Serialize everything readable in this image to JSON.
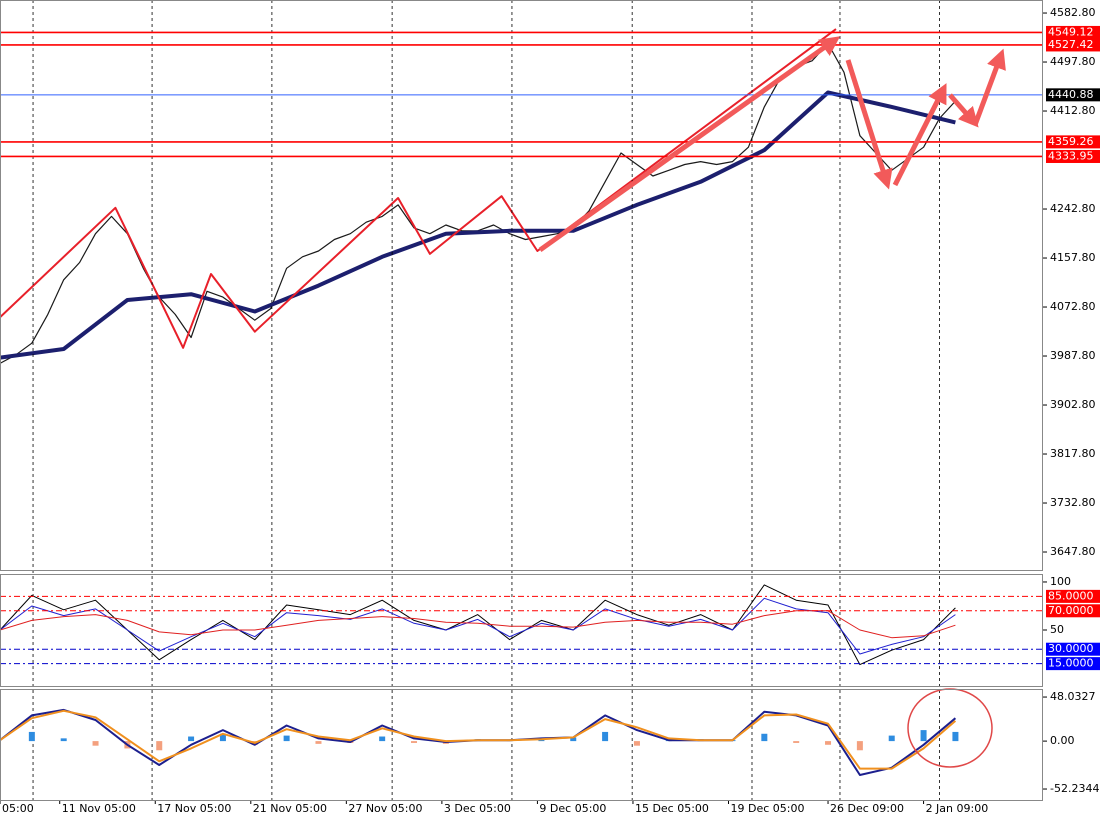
{
  "chart_data": [
    {
      "type": "line",
      "xlim": [
        0,
        262
      ],
      "ylim": [
        3616.6,
        4605.4
      ],
      "yticks": [
        {
          "value": 4582.8,
          "label": "4582.80"
        },
        {
          "value": 4497.8,
          "label": "4497.80"
        },
        {
          "value": 4412.8,
          "label": "4412.80"
        },
        {
          "value": 4242.8,
          "label": "4242.80"
        },
        {
          "value": 4157.8,
          "label": "4157.80"
        },
        {
          "value": 4072.8,
          "label": "4072.80"
        },
        {
          "value": 3987.8,
          "label": "3987.80"
        },
        {
          "value": 3902.8,
          "label": "3902.80"
        },
        {
          "value": 3817.8,
          "label": "3817.80"
        },
        {
          "value": 3732.8,
          "label": "3732.80"
        },
        {
          "value": 3647.8,
          "label": "3647.80"
        }
      ],
      "separators": [
        8.3,
        38.2,
        68.3,
        98.5,
        128.6,
        158.8,
        188.9,
        211,
        236
      ],
      "levels": [
        {
          "value": 4549.12,
          "color": "#ff0000",
          "label_color": "#ff0000"
        },
        {
          "value": 4527.42,
          "color": "#ff0000",
          "label_color": "#ff0000"
        },
        {
          "value": 4440.88,
          "color": "#3060ff",
          "label_color": "#000000"
        },
        {
          "value": 4359.26,
          "color": "#ff0000",
          "label_color": "#ff0000"
        },
        {
          "value": 4333.95,
          "color": "#ff0000",
          "label_color": "#ff0000"
        }
      ],
      "series": [
        {
          "color": "#1a1a1a",
          "width": 1.2,
          "x": [
            0,
            4,
            8,
            12,
            16,
            20,
            24,
            28,
            32,
            36,
            40,
            44,
            48,
            52,
            56,
            60,
            64,
            68,
            72,
            76,
            80,
            84,
            88,
            92,
            96,
            100,
            104,
            108,
            112,
            116,
            120,
            124,
            128,
            132,
            136,
            140,
            144,
            148,
            152,
            156,
            160,
            164,
            168,
            172,
            176,
            180,
            184,
            188,
            192,
            196,
            200,
            204,
            208,
            212,
            216,
            220,
            224,
            228,
            232,
            236,
            240
          ],
          "values": [
            3975,
            3990,
            4010,
            4060,
            4120,
            4150,
            4200,
            4230,
            4200,
            4140,
            4090,
            4060,
            4020,
            4100,
            4090,
            4070,
            4050,
            4070,
            4140,
            4160,
            4170,
            4190,
            4200,
            4220,
            4230,
            4250,
            4210,
            4200,
            4215,
            4205,
            4205,
            4215,
            4200,
            4190,
            4195,
            4200,
            4210,
            4240,
            4290,
            4340,
            4320,
            4300,
            4310,
            4320,
            4325,
            4320,
            4325,
            4350,
            4420,
            4470,
            4490,
            4500,
            4530,
            4480,
            4370,
            4340,
            4310,
            4330,
            4350,
            4400,
            4430
          ]
        },
        {
          "color": "#1c1f6e",
          "width": 4,
          "x": [
            0,
            16,
            32,
            48,
            64,
            80,
            96,
            112,
            128,
            144,
            160,
            176,
            192,
            208,
            224,
            240
          ],
          "values": [
            3985,
            4000,
            4085,
            4095,
            4065,
            4110,
            4160,
            4200,
            4205,
            4205,
            4250,
            4290,
            4345,
            4445,
            4420,
            4393
          ]
        },
        {
          "color": "#e8202a",
          "width": 2,
          "x": [
            0,
            29,
            46,
            53,
            64,
            100,
            108,
            126,
            135,
            210
          ],
          "values": [
            4055,
            4245,
            4002,
            4130,
            4030,
            4262,
            4165,
            4265,
            4170,
            4555
          ]
        }
      ]
    },
    {
      "type": "line",
      "xlim": [
        0,
        262
      ],
      "ylim": [
        -8.3,
        108.3
      ],
      "yticks": [
        100,
        50
      ],
      "levels": [
        {
          "value": 85,
          "label": "85.0000",
          "color": "#ff0000",
          "label_color": "#ff0000"
        },
        {
          "value": 70,
          "label": "70.0000",
          "color": "#ff0000",
          "label_color": "#ff0000"
        },
        {
          "value": 30,
          "label": "30.0000",
          "color": "#0000cc",
          "label_color": "#0000ff"
        },
        {
          "value": 15,
          "label": "15.0000",
          "color": "#0000cc",
          "label_color": "#0000ff"
        }
      ],
      "series": [
        {
          "color": "#000000",
          "width": 1,
          "x": [
            0,
            8,
            16,
            24,
            32,
            40,
            48,
            56,
            64,
            72,
            80,
            88,
            96,
            104,
            112,
            120,
            128,
            136,
            144,
            152,
            160,
            168,
            176,
            184,
            192,
            200,
            208,
            216,
            224,
            232,
            240
          ],
          "values": [
            50,
            86,
            71,
            81,
            50,
            19,
            40,
            60,
            40,
            76,
            71,
            66,
            81,
            60,
            50,
            66,
            40,
            60,
            50,
            81,
            66,
            55,
            66,
            50,
            97,
            81,
            76,
            14,
            29,
            40,
            73
          ]
        },
        {
          "color": "#2020d0",
          "width": 1,
          "x": [
            0,
            8,
            16,
            24,
            32,
            40,
            48,
            56,
            64,
            72,
            80,
            88,
            96,
            104,
            112,
            120,
            128,
            136,
            144,
            152,
            160,
            168,
            176,
            184,
            192,
            200,
            208,
            216,
            224,
            232,
            240
          ],
          "values": [
            50,
            75,
            65,
            72,
            50,
            28,
            43,
            57,
            43,
            68,
            65,
            61,
            72,
            57,
            50,
            61,
            43,
            57,
            50,
            72,
            61,
            54,
            61,
            50,
            83,
            72,
            68,
            25,
            35,
            43,
            66
          ]
        },
        {
          "color": "#e02020",
          "width": 1,
          "x": [
            0,
            8,
            16,
            24,
            32,
            40,
            48,
            56,
            64,
            72,
            80,
            88,
            96,
            104,
            112,
            120,
            128,
            136,
            144,
            152,
            160,
            168,
            176,
            184,
            192,
            200,
            208,
            216,
            224,
            232,
            240
          ],
          "values": [
            50,
            60,
            64,
            66,
            60,
            48,
            45,
            50,
            50,
            55,
            60,
            62,
            64,
            62,
            58,
            57,
            54,
            54,
            53,
            58,
            60,
            58,
            58,
            56,
            65,
            70,
            70,
            50,
            42,
            44,
            55
          ]
        }
      ]
    },
    {
      "type": "line",
      "xlim": [
        0,
        262
      ],
      "ylim": [
        -64.2,
        56.8
      ],
      "yticks": [
        48.0327,
        {
          "value": 0,
          "label": "0.00"
        },
        -52.2344
      ],
      "xticks": [
        {
          "value": 0,
          "label": "05:00"
        },
        {
          "value": 15,
          "label": "11 Nov 05:00"
        },
        {
          "value": 39,
          "label": "17 Nov 05:00"
        },
        {
          "value": 63,
          "label": "21 Nov 05:00"
        },
        {
          "value": 87,
          "label": "27 Nov 05:00"
        },
        {
          "value": 111,
          "label": "3 Dec 05:00"
        },
        {
          "value": 135,
          "label": "9 Dec 05:00"
        },
        {
          "value": 159,
          "label": "15 Dec 05:00"
        },
        {
          "value": 183,
          "label": "19 Dec 05:00"
        },
        {
          "value": 208,
          "label": "26 Dec 09:00"
        },
        {
          "value": 232,
          "label": "2 Jan 09:00"
        }
      ],
      "series": [
        {
          "type": "bar",
          "color": "#2e8ce0",
          "negative_color": "#f4a07e",
          "x": [
            0,
            8,
            16,
            24,
            32,
            40,
            48,
            56,
            64,
            72,
            80,
            88,
            96,
            104,
            112,
            120,
            128,
            136,
            144,
            152,
            160,
            168,
            176,
            184,
            192,
            200,
            208,
            216,
            224,
            232,
            240
          ],
          "values": [
            0,
            10,
            3,
            -5,
            -8,
            -10,
            5,
            8,
            -4,
            6,
            -3,
            -2,
            5,
            -2,
            -3,
            2,
            1,
            3,
            4,
            10,
            -5,
            3,
            2,
            1,
            8,
            -2,
            -4,
            -10,
            6,
            12,
            10
          ]
        },
        {
          "color": "#1c1f8e",
          "width": 2,
          "x": [
            0,
            8,
            16,
            24,
            32,
            40,
            48,
            56,
            64,
            72,
            80,
            88,
            96,
            104,
            112,
            120,
            128,
            136,
            144,
            152,
            160,
            168,
            176,
            184,
            192,
            200,
            208,
            216,
            224,
            232,
            240
          ],
          "values": [
            1,
            28,
            34,
            23,
            -4,
            -26,
            -4,
            12,
            -4,
            17,
            3,
            -1,
            17,
            3,
            -1,
            1,
            1,
            3,
            4,
            28,
            12,
            1,
            1,
            1,
            32,
            28,
            17,
            -37,
            -29,
            -4,
            25
          ]
        },
        {
          "color": "#f0901e",
          "width": 2,
          "x": [
            0,
            8,
            16,
            24,
            32,
            40,
            48,
            56,
            64,
            72,
            80,
            88,
            96,
            104,
            112,
            120,
            128,
            136,
            144,
            152,
            160,
            168,
            176,
            184,
            192,
            200,
            208,
            216,
            224,
            232,
            240
          ],
          "values": [
            1,
            25,
            33,
            26,
            2,
            -22,
            -8,
            8,
            -2,
            13,
            5,
            1,
            14,
            5,
            0,
            1,
            1,
            2,
            4,
            24,
            15,
            3,
            1,
            1,
            28,
            29,
            19,
            -30,
            -30,
            -8,
            22
          ]
        }
      ]
    }
  ]
}
